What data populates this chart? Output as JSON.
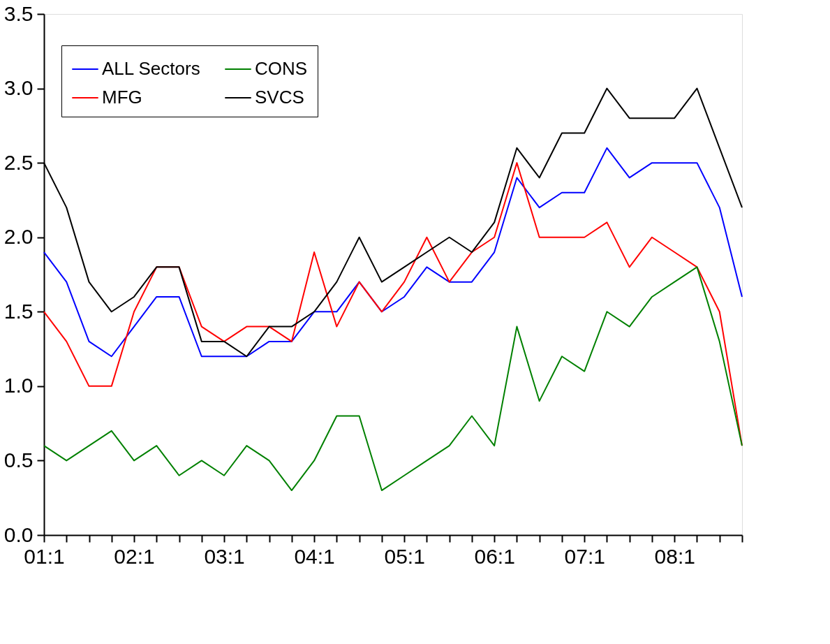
{
  "chart_data": {
    "type": "line",
    "categories": [
      "01:1",
      null,
      null,
      null,
      "02:1",
      null,
      null,
      null,
      "03:1",
      null,
      null,
      null,
      "04:1",
      null,
      null,
      null,
      "05:1",
      null,
      null,
      null,
      "06:1",
      null,
      null,
      null,
      "07:1",
      null,
      null,
      null,
      "08:1",
      null,
      null,
      null
    ],
    "series": [
      {
        "name": "ALL Sectors",
        "color": "#0000ff",
        "values": [
          1.9,
          1.7,
          1.3,
          1.2,
          1.4,
          1.6,
          1.6,
          1.2,
          1.2,
          1.2,
          1.3,
          1.3,
          1.5,
          1.5,
          1.7,
          1.5,
          1.6,
          1.8,
          1.7,
          1.7,
          1.9,
          2.4,
          2.2,
          2.3,
          2.3,
          2.6,
          2.4,
          2.5,
          2.5,
          2.5,
          2.2,
          1.6
        ]
      },
      {
        "name": "MFG",
        "color": "#ff0000",
        "values": [
          1.5,
          1.3,
          1.0,
          1.0,
          1.5,
          1.8,
          1.8,
          1.4,
          1.3,
          1.4,
          1.4,
          1.3,
          1.9,
          1.4,
          1.7,
          1.5,
          1.7,
          2.0,
          1.7,
          1.9,
          2.0,
          2.5,
          2.0,
          2.0,
          2.0,
          2.1,
          1.8,
          2.0,
          1.9,
          1.8,
          1.5,
          0.6
        ]
      },
      {
        "name": "CONS",
        "color": "#008000",
        "values": [
          0.6,
          0.5,
          0.6,
          0.7,
          0.5,
          0.6,
          0.4,
          0.5,
          0.4,
          0.6,
          0.5,
          0.3,
          0.5,
          0.8,
          0.8,
          0.3,
          0.4,
          0.5,
          0.6,
          0.8,
          0.6,
          1.4,
          0.9,
          1.2,
          1.1,
          1.5,
          1.4,
          1.6,
          1.7,
          1.8,
          1.3,
          0.6
        ]
      },
      {
        "name": "SVCS",
        "color": "#000000",
        "values": [
          2.5,
          2.2,
          1.7,
          1.5,
          1.6,
          1.8,
          1.8,
          1.3,
          1.3,
          1.2,
          1.4,
          1.4,
          1.5,
          1.7,
          2.0,
          1.7,
          1.8,
          1.9,
          2.0,
          1.9,
          2.1,
          2.6,
          2.4,
          2.7,
          2.7,
          3.0,
          2.8,
          2.8,
          2.8,
          3.0,
          2.6,
          2.2
        ]
      }
    ],
    "ylim": [
      0,
      3.5
    ],
    "yticks": [
      {
        "value": 0,
        "label": "0.0"
      },
      0.5,
      {
        "value": 1,
        "label": "1.0"
      },
      1.5,
      {
        "value": 2,
        "label": "2.0"
      },
      2.5,
      {
        "value": 3,
        "label": "3.0"
      },
      3.5
    ],
    "legend": "top left",
    "grid": false,
    "marker": "none",
    "line_style": "solid"
  }
}
